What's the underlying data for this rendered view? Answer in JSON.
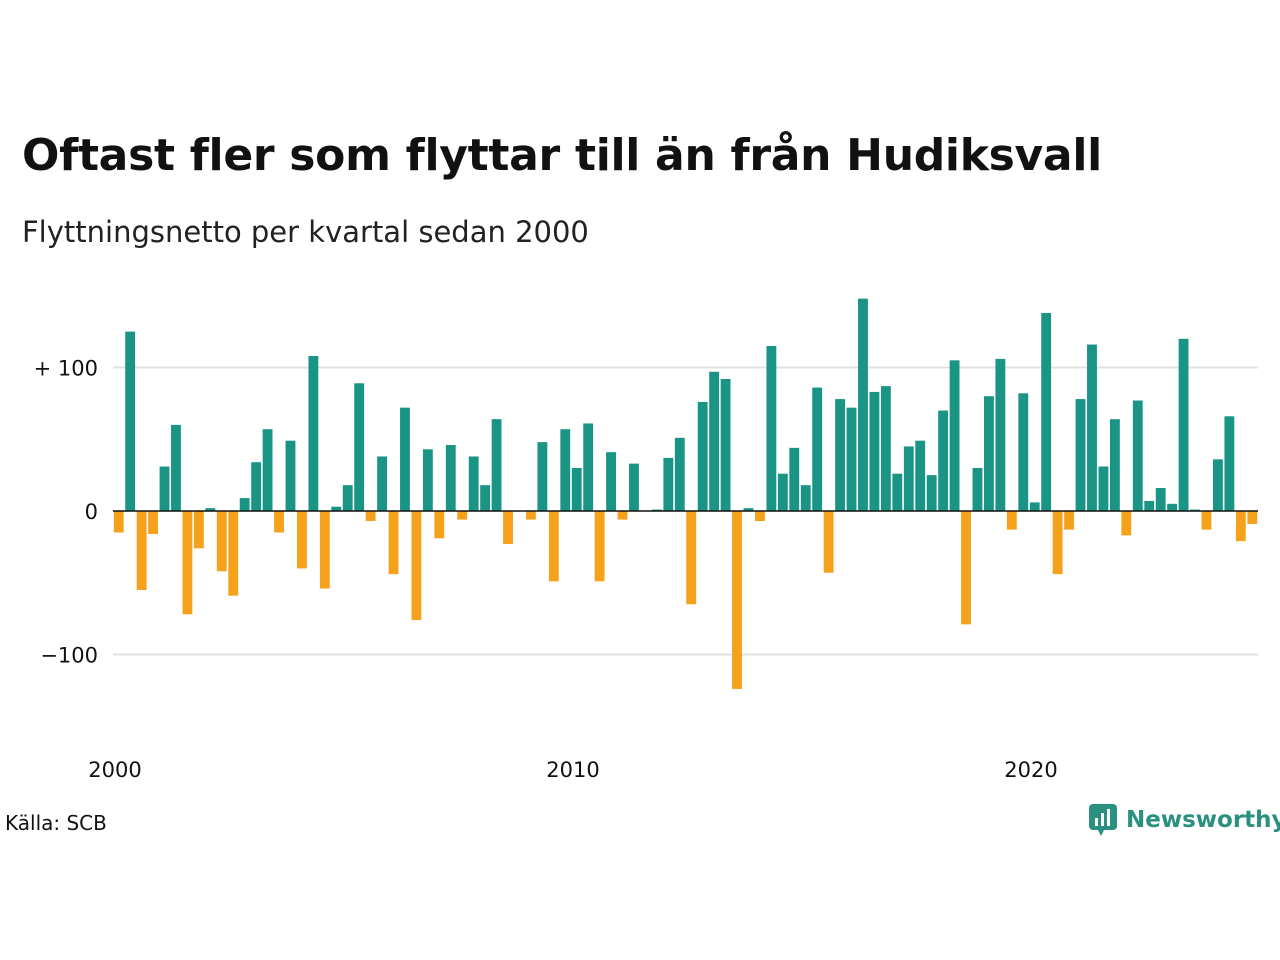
{
  "title": "Oftast fler som flyttar till än från Hudiksvall",
  "subtitle": "Flyttningsnetto per kvartal sedan 2000",
  "source": "Källa: SCB",
  "brand": {
    "name": "Newsworthy",
    "icon": "newsworthy-logo-icon"
  },
  "colors": {
    "positive": "#1a9484",
    "negative": "#f5a11c",
    "grid": "#e1e1e1",
    "zero": "#111111"
  },
  "chart_data": {
    "type": "bar",
    "title": "Oftast fler som flyttar till än från Hudiksvall",
    "subtitle": "Flyttningsnetto per kvartal sedan 2000",
    "x_start": "2000 Q1",
    "x_tick_labels": [
      "2000",
      "2010",
      "2020"
    ],
    "y_tick_labels": [
      "+ 100",
      "0",
      "−100"
    ],
    "y_ticks": [
      100,
      0,
      -100
    ],
    "ylim": [
      -155,
      155
    ],
    "grid": true,
    "values": [
      -15,
      125,
      -55,
      -16,
      31,
      60,
      -72,
      -26,
      2,
      -42,
      -59,
      9,
      34,
      57,
      -15,
      49,
      -40,
      108,
      -54,
      3,
      18,
      89,
      -7,
      38,
      -44,
      72,
      -76,
      43,
      -19,
      46,
      -6,
      38,
      18,
      64,
      -23,
      0,
      -6,
      48,
      -49,
      57,
      30,
      61,
      -49,
      41,
      -6,
      33,
      0,
      1,
      37,
      51,
      -65,
      76,
      97,
      92,
      -124,
      2,
      -7,
      115,
      26,
      44,
      18,
      86,
      -43,
      78,
      72,
      148,
      83,
      87,
      26,
      45,
      49,
      25,
      70,
      105,
      -79,
      30,
      80,
      106,
      -13,
      82,
      6,
      138,
      -44,
      -13,
      78,
      116,
      31,
      64,
      -17,
      77,
      7,
      16,
      5,
      120,
      1,
      -13,
      36,
      66,
      -21,
      -9
    ]
  }
}
